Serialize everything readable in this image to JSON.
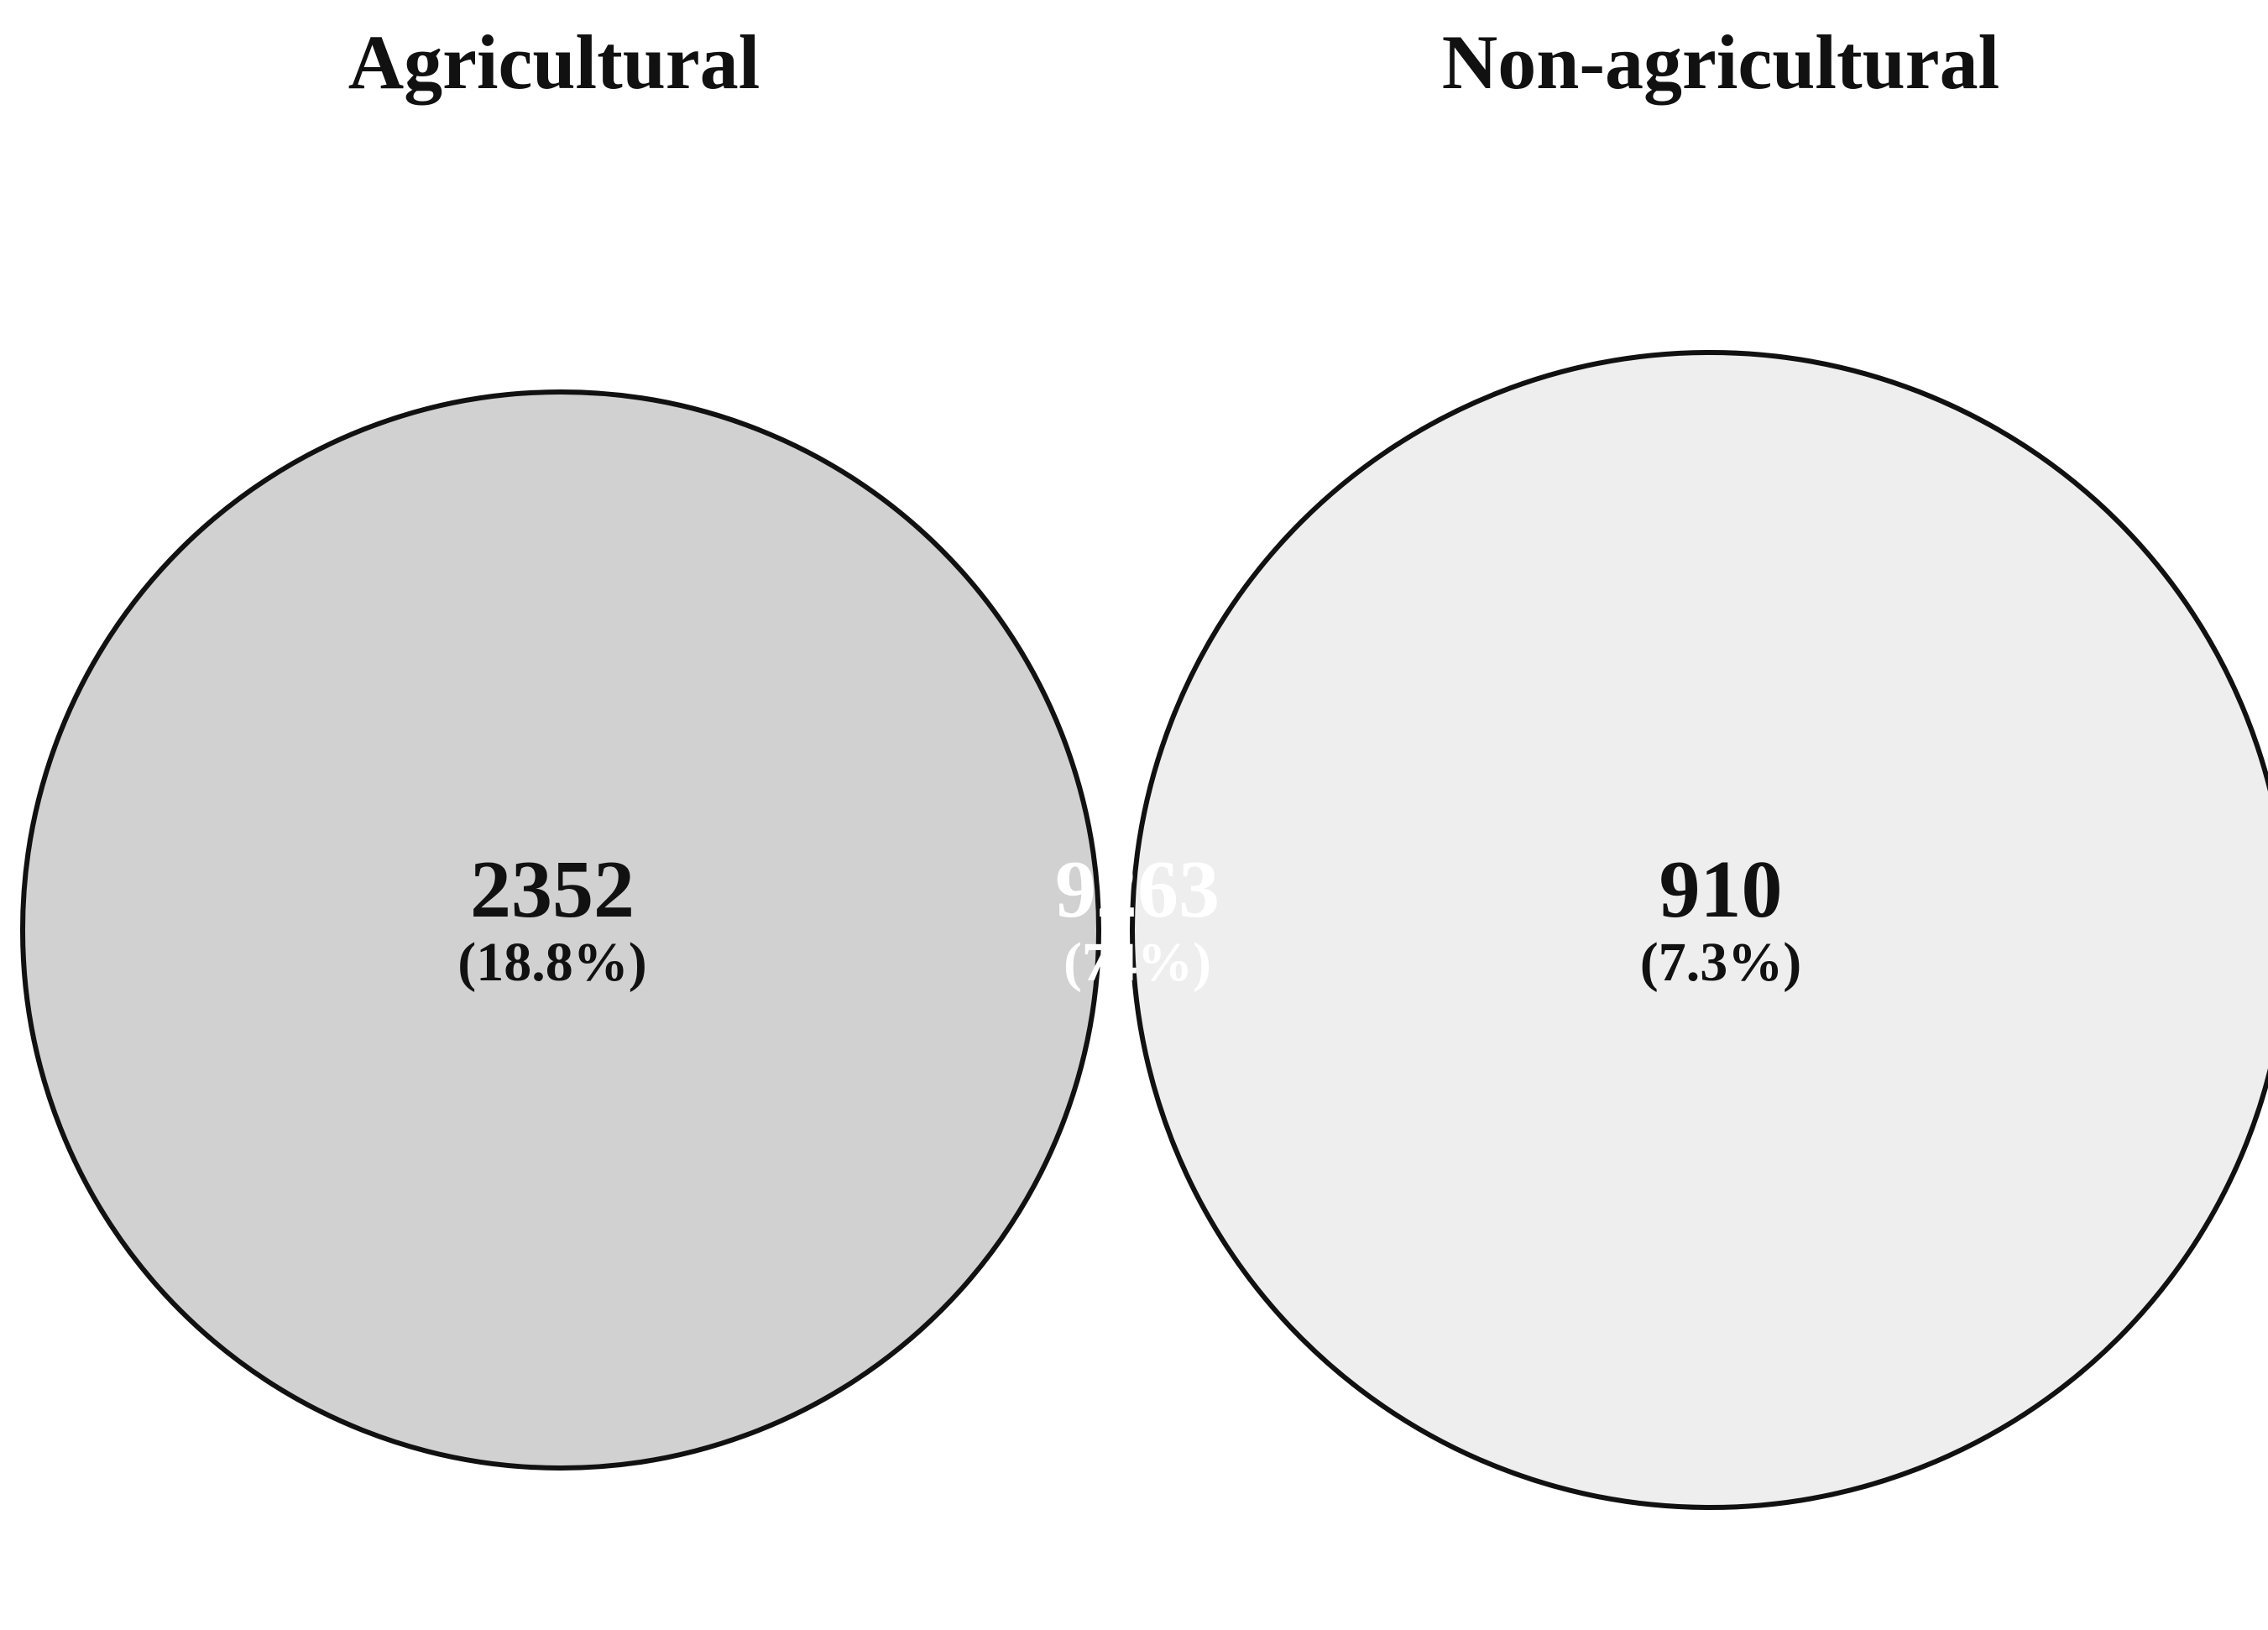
{
  "sets": [
    {
      "name": "Agricultural",
      "color": "#d1d1d1"
    },
    {
      "name": "Non-agricultural",
      "color": "#eeeeee"
    }
  ],
  "intersection_color": "#404040",
  "regions": {
    "only_agricultural": {
      "count": "2352",
      "percent": "(18.8%)",
      "text_color": "#111111"
    },
    "both": {
      "count": "9263",
      "percent": "(74%)",
      "text_color": "#ffffff"
    },
    "only_non_agricultural": {
      "count": "910",
      "percent": "(7.3%)",
      "text_color": "#111111"
    }
  }
}
